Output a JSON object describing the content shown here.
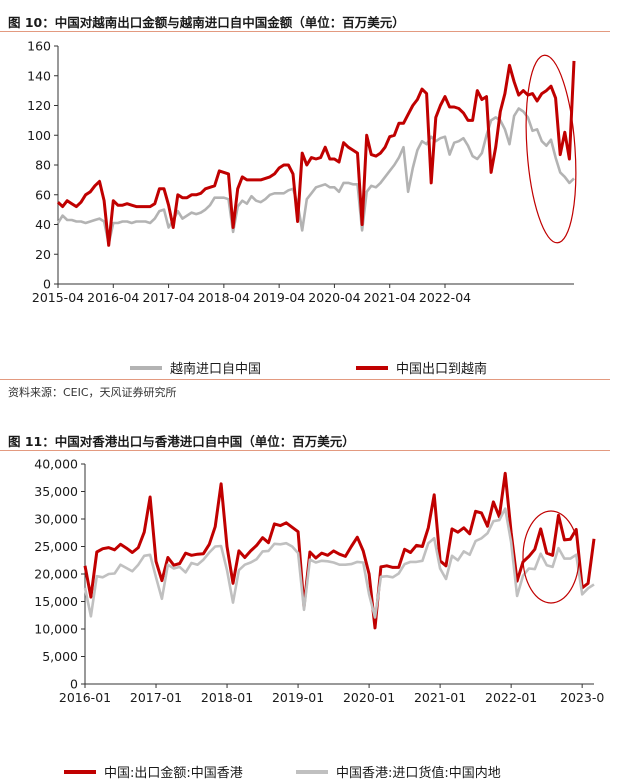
{
  "figure1": {
    "title": "图 10：中国对越南出口金额与越南进口自中国金额（单位：百万美元）",
    "source": "资料来源：CEIC，天风证券研究所",
    "chart_data": {
      "type": "line",
      "x_tick_labels": [
        "2015-04",
        "2016-04",
        "2017-04",
        "2018-04",
        "2019-04",
        "2020-04",
        "2021-04",
        "2022-04"
      ],
      "ylim": [
        0,
        160
      ],
      "y_ticks": [
        0,
        20,
        40,
        60,
        80,
        100,
        120,
        140,
        160
      ],
      "x_start": "2015-04",
      "series": [
        {
          "name": "越南进口自中国",
          "color": "#b3b3b3",
          "values": [
            41,
            46,
            43,
            43,
            42,
            42,
            41,
            42,
            43,
            44,
            42,
            27,
            41,
            41,
            42,
            42,
            41,
            42,
            42,
            42,
            41,
            44,
            49,
            50,
            38,
            43,
            49,
            44,
            46,
            48,
            47,
            48,
            50,
            53,
            58,
            58,
            58,
            57,
            35,
            52,
            56,
            54,
            59,
            56,
            55,
            57,
            60,
            61,
            61,
            61,
            63,
            64,
            54,
            36,
            57,
            61,
            65,
            66,
            67,
            65,
            65,
            62,
            68,
            68,
            67,
            67,
            36,
            62,
            66,
            65,
            68,
            72,
            76,
            80,
            85,
            92,
            62,
            78,
            90,
            96,
            94,
            99,
            96,
            98,
            99,
            87,
            95,
            96,
            98,
            93,
            86,
            84,
            88,
            100,
            110,
            112,
            110,
            104,
            94,
            113,
            118,
            116,
            112,
            103,
            104,
            96,
            93,
            97,
            85,
            75,
            72,
            68,
            71
          ]
        },
        {
          "name": "中国出口到越南",
          "color": "#c00000",
          "values": [
            55,
            52,
            56,
            54,
            52,
            55,
            60,
            62,
            66,
            69,
            56,
            26,
            56,
            53,
            53,
            54,
            53,
            52,
            52,
            52,
            52,
            54,
            64,
            64,
            53,
            38,
            60,
            58,
            58,
            60,
            60,
            61,
            64,
            65,
            66,
            76,
            75,
            74,
            38,
            64,
            72,
            70,
            70,
            70,
            70,
            71,
            72,
            74,
            78,
            80,
            80,
            74,
            42,
            88,
            80,
            85,
            84,
            85,
            92,
            84,
            84,
            82,
            95,
            92,
            90,
            88,
            40,
            100,
            87,
            86,
            88,
            92,
            99,
            100,
            108,
            108,
            114,
            120,
            124,
            131,
            128,
            68,
            112,
            120,
            126,
            119,
            119,
            118,
            115,
            110,
            110,
            130,
            124,
            126,
            75,
            92,
            116,
            128,
            147,
            136,
            127,
            130,
            127,
            128,
            123,
            128,
            130,
            133,
            125,
            87,
            102,
            84,
            150
          ]
        }
      ]
    },
    "legend": {
      "item1": "越南进口自中国",
      "item2": "中国出口到越南"
    }
  },
  "figure2": {
    "title": "图 11：中国对香港出口与香港进口自中国（单位：百万美元）",
    "chart_data": {
      "type": "line",
      "x_tick_labels": [
        "2016-01",
        "2017-01",
        "2018-01",
        "2019-01",
        "2020-01",
        "2021-01",
        "2022-01",
        "2023-0"
      ],
      "ylim": [
        0,
        40000
      ],
      "y_ticks": [
        0,
        5000,
        10000,
        15000,
        20000,
        25000,
        30000,
        35000,
        40000
      ],
      "y_tick_labels": [
        "0",
        "5,000",
        "10,000",
        "15,000",
        "20,000",
        "25,000",
        "30,000",
        "35,000",
        "40,000"
      ],
      "x_start": "2016-01",
      "series": [
        {
          "name": "中国:出口金额:中国香港",
          "color": "#c00000",
          "values": [
            21500,
            15800,
            24000,
            24600,
            24800,
            24400,
            25400,
            24700,
            23900,
            24800,
            27600,
            34000,
            22300,
            18800,
            23000,
            21600,
            21900,
            23800,
            23400,
            23600,
            23700,
            25400,
            28600,
            36400,
            25000,
            18300,
            24200,
            23000,
            24200,
            25200,
            26600,
            25700,
            29100,
            28800,
            29300,
            28500,
            27700,
            14000,
            24000,
            22900,
            23800,
            23400,
            24200,
            23600,
            23200,
            25000,
            26700,
            24200,
            20000,
            10200,
            21300,
            21500,
            21200,
            21200,
            24500,
            23900,
            25200,
            25000,
            28400,
            34400,
            22400,
            21500,
            28200,
            27600,
            28400,
            27300,
            31400,
            31100,
            28700,
            33100,
            30400,
            38300,
            27600,
            18700,
            22200,
            23200,
            24500,
            28200,
            23800,
            23400,
            30700,
            26200,
            26300,
            28100,
            17500,
            18300,
            26400
          ]
        },
        {
          "name": "中国香港:进口货值:中国内地",
          "color": "#c0c0c0",
          "values": [
            17500,
            12300,
            19600,
            19400,
            20000,
            20100,
            21700,
            21100,
            20500,
            21700,
            23300,
            23500,
            19400,
            15500,
            21700,
            21000,
            21300,
            20300,
            22000,
            21700,
            22600,
            23900,
            25000,
            25100,
            20700,
            14800,
            20700,
            21700,
            22100,
            22700,
            24100,
            24200,
            25500,
            25400,
            25600,
            25000,
            23800,
            13500,
            22600,
            22100,
            22400,
            22300,
            22100,
            21700,
            21700,
            21800,
            22200,
            22100,
            16300,
            12100,
            19500,
            19600,
            19400,
            20100,
            21800,
            22200,
            22200,
            22400,
            25600,
            26500,
            21000,
            19100,
            23300,
            22500,
            24100,
            23500,
            26000,
            26500,
            27400,
            29600,
            29800,
            31900,
            25800,
            16000,
            19700,
            21000,
            20900,
            23700,
            21600,
            21300,
            24700,
            22800,
            22800,
            23500,
            16300,
            17400,
            18100
          ]
        }
      ]
    },
    "legend": {
      "item1": "中国:出口金额:中国香港",
      "item2": "中国香港:进口货值:中国内地"
    }
  }
}
